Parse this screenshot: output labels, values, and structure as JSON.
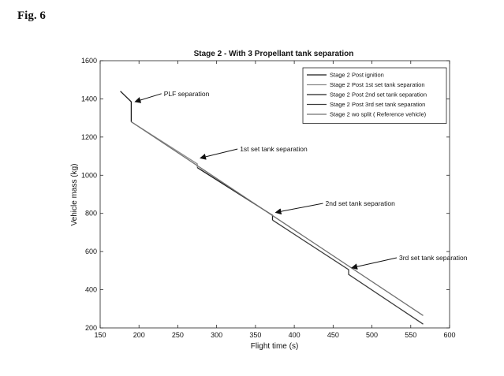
{
  "figure_label": "Fig. 6",
  "chart_data": {
    "type": "line",
    "title": "Stage 2 - With 3 Propellant tank separation",
    "xlabel": "Flight time (s)",
    "ylabel": "Vehicle mass (kg)",
    "xlim": [
      150,
      600
    ],
    "ylim": [
      200,
      1600
    ],
    "xticks": [
      150,
      200,
      250,
      300,
      350,
      400,
      450,
      500,
      550,
      600
    ],
    "yticks": [
      200,
      400,
      600,
      800,
      1000,
      1200,
      1400,
      1600
    ],
    "grid": false,
    "legend_position": "top-right",
    "series": [
      {
        "name": "Stage 2 Post ignition",
        "color": "#1a1a1a",
        "x": [
          176,
          190,
          190
        ],
        "y": [
          1440,
          1385,
          1280
        ]
      },
      {
        "name": "Stage 2 Post  1st set tank separation",
        "color": "#8a8a8a",
        "x": [
          190,
          275,
          275
        ],
        "y": [
          1280,
          1060,
          1040
        ]
      },
      {
        "name": "Stage 2 Post  2nd set tank separation",
        "color": "#202020",
        "x": [
          275,
          372,
          372
        ],
        "y": [
          1040,
          790,
          765
        ]
      },
      {
        "name": "Stage 2 Post 3rd set tank separation",
        "color": "#3c3c3c",
        "x": [
          372,
          470,
          470,
          566
        ],
        "y": [
          765,
          505,
          480,
          220
        ]
      },
      {
        "name": "Stage 2 wo split ( Reference vehicle)",
        "color": "#707070",
        "x": [
          190,
          566
        ],
        "y": [
          1280,
          265
        ]
      }
    ],
    "annotations": [
      {
        "text": "PLF separation",
        "x": 232,
        "y": 1415,
        "arrow_to": [
          192,
          1385
        ]
      },
      {
        "text": "1st set tank separation",
        "x": 330,
        "y": 1125,
        "arrow_to": [
          276,
          1090
        ]
      },
      {
        "text": "2nd set tank separation",
        "x": 440,
        "y": 840,
        "arrow_to": [
          373,
          805
        ]
      },
      {
        "text": "3rd set tank separation",
        "x": 535,
        "y": 555,
        "arrow_to": [
          471,
          515
        ]
      }
    ]
  }
}
